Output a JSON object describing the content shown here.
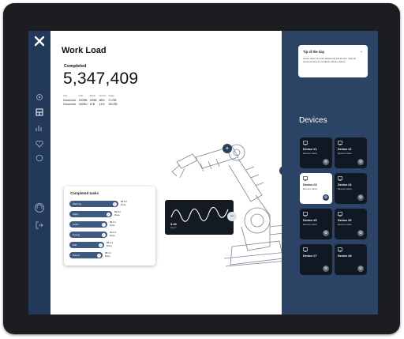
{
  "app": {
    "close_glyph": "✕"
  },
  "workload": {
    "title": "Work Load",
    "completed_label": "Completed",
    "completed_value": "5,347,409",
    "stats": {
      "headers": [
        "Year",
        "Units",
        "Month",
        "Percent",
        "Today"
      ],
      "rows": [
        [
          "December",
          "200RB",
          "50SB",
          "88%",
          "3 LRB"
        ],
        [
          "December",
          "330RU",
          "57B",
          "14%",
          "94LRB"
        ]
      ]
    }
  },
  "tasks": {
    "title": "Completed tasks",
    "items": [
      {
        "label": "Warning",
        "value": "98.5.2",
        "sub": "Done"
      },
      {
        "label": "Apply",
        "value": "99.0.2",
        "sub": "Done"
      },
      {
        "label": "Cabin",
        "value": "98.2.1",
        "sub": "Done"
      },
      {
        "label": "Energy",
        "value": "99.1.5",
        "sub": "Done"
      },
      {
        "label": "Edit",
        "value": "98.4.4",
        "sub": "Done"
      },
      {
        "label": "Saved",
        "value": "98.0.1",
        "sub": "Done"
      }
    ],
    "progress": [
      0.86,
      0.75,
      0.67,
      0.67,
      0.61,
      0.58
    ]
  },
  "graph": {
    "value": "3.40",
    "label": "Speed"
  },
  "tip": {
    "title": "Tip of the day",
    "text": "Ipsum dolor sit amet adipiscing elit tempor. Sed do eiusmod tempor incididunt labore dolore."
  },
  "devices": {
    "title": "Devices",
    "items": [
      {
        "name": "Device #1",
        "status": "Element status",
        "active": false
      },
      {
        "name": "Device #2",
        "status": "Element status",
        "active": false
      },
      {
        "name": "Device #3",
        "status": "Element status",
        "active": true
      },
      {
        "name": "Device #4",
        "status": "Element status",
        "active": false
      },
      {
        "name": "Device #5",
        "status": "Element status",
        "active": false
      },
      {
        "name": "Device #6",
        "status": "Element status",
        "active": false
      },
      {
        "name": "Device #7",
        "status": "",
        "active": false
      },
      {
        "name": "Device #8",
        "status": "",
        "active": false
      }
    ]
  },
  "icons": {
    "sidebar": [
      "gear-icon",
      "dashboard-icon",
      "chart-icon",
      "heart-icon",
      "settings-icon",
      "headset-icon",
      "logout-icon"
    ],
    "gear_glyph": "⚙",
    "check_glyph": "✓",
    "chevron_glyph": "⌄",
    "minus_glyph": "−",
    "plus_glyph": "+"
  },
  "colors": {
    "sidebar": "#23395a",
    "panel": "#2b4466",
    "card": "#101824",
    "accent": "#3e5a80"
  }
}
